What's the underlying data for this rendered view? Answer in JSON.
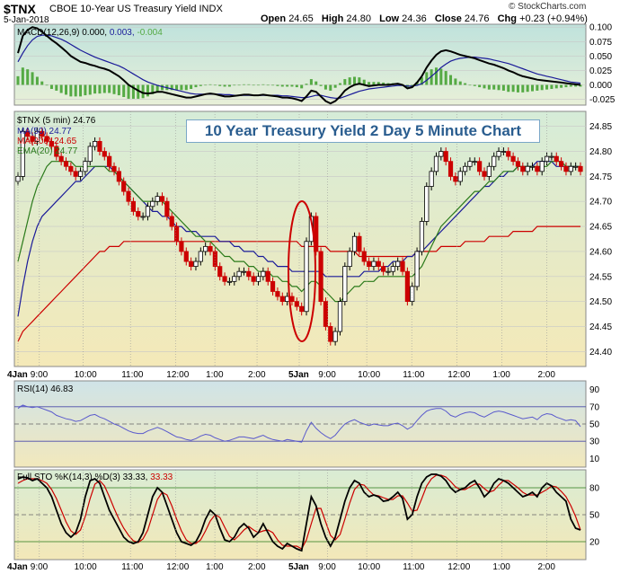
{
  "header": {
    "symbol": "$TNX",
    "name": "CBOE 10-Year US Treasury Yield INDX",
    "date": "5-Jan-2018",
    "open_label": "Open",
    "open": "24.65",
    "high_label": "High",
    "high": "24.80",
    "low_label": "Low",
    "low": "24.36",
    "close_label": "Close",
    "close": "24.76",
    "chg_label": "Chg",
    "chg": "+0.23 (+0.94%)",
    "brand": "© StockCharts.com"
  },
  "chart_title": "10 Year Treasury Yield 2 Day 5 Minute Chart",
  "colors": {
    "up": "#000000",
    "down": "#cc0000",
    "ma50": "#1a1a99",
    "ma200": "#cc0000",
    "ema20": "#2a7a1a",
    "rsi": "#5a5acc",
    "sto_k": "#000000",
    "sto_d": "#cc0000",
    "macd_hist": "#55aa44"
  },
  "x_axis": {
    "ticks": [
      "4Jan",
      "9:00",
      "10:00",
      "11:00",
      "12:00",
      "1:00",
      "2:00",
      "5Jan",
      "9:00",
      "10:00",
      "11:00",
      "12:00",
      "1:00",
      "2:00"
    ]
  },
  "panels": {
    "macd": {
      "label": "MACD(12,26,9)",
      "values_text": "0.000,",
      "signal_text": "0.003,",
      "hist_text": "-0.004",
      "yticks": [
        "0.100",
        "0.075",
        "0.050",
        "0.025",
        "0.000",
        "-0.025"
      ]
    },
    "price": {
      "label": "$TNX (5 min) 24.76",
      "ma50_label": "MA(50) 24.77",
      "ma200_label": "MA(200) 24.65",
      "ema20_label": "EMA(20) 24.77",
      "yticks": [
        "24.85",
        "24.80",
        "24.75",
        "24.70",
        "24.65",
        "24.60",
        "24.55",
        "24.50",
        "24.45",
        "24.40"
      ]
    },
    "rsi": {
      "label": "RSI(14) 46.83",
      "yticks": [
        "90",
        "70",
        "50",
        "30",
        "10"
      ]
    },
    "sto": {
      "label": "Full STO %K(14,3) %D(3) 33.33,",
      "d_text": "33.33",
      "yticks": [
        "80",
        "50",
        "20"
      ]
    }
  },
  "chart_data": [
    {
      "type": "candlestick",
      "title": "10 Year Treasury Yield 2 Day 5 Minute Chart",
      "series_name": "$TNX (5 min)",
      "ylim": [
        24.37,
        24.88
      ],
      "close": [
        24.75,
        24.84,
        24.83,
        24.82,
        24.84,
        24.83,
        24.82,
        24.81,
        24.79,
        24.78,
        24.77,
        24.76,
        24.75,
        24.76,
        24.78,
        24.81,
        24.82,
        24.8,
        24.79,
        24.77,
        24.76,
        24.74,
        24.72,
        24.7,
        24.68,
        24.67,
        24.67,
        24.69,
        24.7,
        24.71,
        24.7,
        24.67,
        24.65,
        24.62,
        24.6,
        24.58,
        24.57,
        24.58,
        24.6,
        24.61,
        24.6,
        24.57,
        24.55,
        24.54,
        24.54,
        24.55,
        24.56,
        24.56,
        24.55,
        24.54,
        24.55,
        24.56,
        24.54,
        24.52,
        24.51,
        24.5,
        24.51,
        24.5,
        24.49,
        24.48,
        24.62,
        24.67,
        24.6,
        24.5,
        24.45,
        24.42,
        24.44,
        24.5,
        24.57,
        24.6,
        24.63,
        24.6,
        24.58,
        24.57,
        24.58,
        24.57,
        24.56,
        24.56,
        24.57,
        24.58,
        24.56,
        24.5,
        24.53,
        24.6,
        24.66,
        24.73,
        24.76,
        24.79,
        24.8,
        24.78,
        24.75,
        24.74,
        24.76,
        24.77,
        24.78,
        24.78,
        24.76,
        24.75,
        24.77,
        24.79,
        24.8,
        24.8,
        24.79,
        24.78,
        24.77,
        24.76,
        24.77,
        24.77,
        24.76,
        24.78,
        24.79,
        24.79,
        24.78,
        24.77,
        24.76,
        24.77,
        24.77,
        24.76
      ],
      "ma50": [
        24.47,
        24.53,
        24.58,
        24.62,
        24.65,
        24.67,
        24.68,
        24.69,
        24.7,
        24.71,
        24.72,
        24.73,
        24.74,
        24.74,
        24.75,
        24.76,
        24.77,
        24.77,
        24.77,
        24.77,
        24.76,
        24.75,
        24.74,
        24.73,
        24.72,
        24.71,
        24.7,
        24.69,
        24.68,
        24.68,
        24.67,
        24.67,
        24.66,
        24.65,
        24.65,
        24.64,
        24.64,
        24.64,
        24.63,
        24.63,
        24.63,
        24.63,
        24.62,
        24.62,
        24.62,
        24.61,
        24.61,
        24.6,
        24.6,
        24.6,
        24.59,
        24.59,
        24.58,
        24.58,
        24.57,
        24.57,
        24.57,
        24.56,
        24.56,
        24.56,
        24.56,
        24.56,
        24.56,
        24.56,
        24.55,
        24.55,
        24.55,
        24.55,
        24.55,
        24.55,
        24.55,
        24.55,
        24.56,
        24.56,
        24.56,
        24.56,
        24.57,
        24.57,
        24.58,
        24.58,
        24.58,
        24.59,
        24.59,
        24.6,
        24.6,
        24.61,
        24.62,
        24.63,
        24.64,
        24.65,
        24.66,
        24.67,
        24.68,
        24.69,
        24.7,
        24.71,
        24.72,
        24.73,
        24.73,
        24.74,
        24.75,
        24.75,
        24.76,
        24.76,
        24.77,
        24.77,
        24.77,
        24.77,
        24.78,
        24.78,
        24.78,
        24.78,
        24.77,
        24.77,
        24.77,
        24.77,
        24.77,
        24.77
      ],
      "ma200": [
        24.42,
        24.44,
        24.45,
        24.46,
        24.47,
        24.48,
        24.49,
        24.5,
        24.51,
        24.52,
        24.53,
        24.54,
        24.55,
        24.56,
        24.57,
        24.58,
        24.59,
        24.6,
        24.6,
        24.61,
        24.61,
        24.61,
        24.62,
        24.62,
        24.62,
        24.62,
        24.62,
        24.62,
        24.62,
        24.62,
        24.62,
        24.62,
        24.62,
        24.62,
        24.62,
        24.62,
        24.62,
        24.62,
        24.62,
        24.62,
        24.62,
        24.62,
        24.62,
        24.62,
        24.62,
        24.62,
        24.62,
        24.62,
        24.62,
        24.62,
        24.62,
        24.62,
        24.62,
        24.62,
        24.62,
        24.62,
        24.62,
        24.62,
        24.62,
        24.61,
        24.61,
        24.61,
        24.61,
        24.61,
        24.61,
        24.6,
        24.6,
        24.6,
        24.6,
        24.6,
        24.6,
        24.59,
        24.59,
        24.59,
        24.59,
        24.59,
        24.59,
        24.59,
        24.59,
        24.59,
        24.59,
        24.59,
        24.59,
        24.6,
        24.6,
        24.6,
        24.6,
        24.6,
        24.61,
        24.61,
        24.61,
        24.61,
        24.61,
        24.62,
        24.62,
        24.62,
        24.62,
        24.62,
        24.63,
        24.63,
        24.63,
        24.63,
        24.63,
        24.64,
        24.64,
        24.64,
        24.64,
        24.64,
        24.65,
        24.65,
        24.65,
        24.65,
        24.65,
        24.65,
        24.65,
        24.65,
        24.65,
        24.65
      ],
      "ema20": [
        24.58,
        24.62,
        24.66,
        24.7,
        24.73,
        24.75,
        24.77,
        24.78,
        24.78,
        24.78,
        24.78,
        24.78,
        24.77,
        24.77,
        24.77,
        24.77,
        24.77,
        24.77,
        24.77,
        24.76,
        24.76,
        24.75,
        24.74,
        24.73,
        24.72,
        24.71,
        24.7,
        24.7,
        24.7,
        24.7,
        24.7,
        24.69,
        24.68,
        24.67,
        24.66,
        24.65,
        24.64,
        24.63,
        24.63,
        24.62,
        24.62,
        24.61,
        24.6,
        24.59,
        24.59,
        24.58,
        24.58,
        24.58,
        24.57,
        24.57,
        24.56,
        24.56,
        24.56,
        24.55,
        24.55,
        24.54,
        24.54,
        24.53,
        24.53,
        24.52,
        24.53,
        24.54,
        24.54,
        24.53,
        24.52,
        24.51,
        24.5,
        24.5,
        24.51,
        24.52,
        24.53,
        24.53,
        24.54,
        24.54,
        24.54,
        24.55,
        24.55,
        24.55,
        24.55,
        24.55,
        24.55,
        24.55,
        24.55,
        24.56,
        24.57,
        24.59,
        24.61,
        24.63,
        24.65,
        24.66,
        24.67,
        24.68,
        24.69,
        24.7,
        24.71,
        24.72,
        24.72,
        24.73,
        24.74,
        24.74,
        24.75,
        24.76,
        24.76,
        24.76,
        24.77,
        24.77,
        24.77,
        24.77,
        24.77,
        24.77,
        24.77,
        24.78,
        24.78,
        24.78,
        24.77,
        24.77,
        24.77,
        24.77
      ]
    },
    {
      "type": "line",
      "series_name": "MACD(12,26,9)",
      "ylim": [
        -0.035,
        0.105
      ],
      "macd": [
        0.055,
        0.085,
        0.095,
        0.1,
        0.098,
        0.092,
        0.085,
        0.078,
        0.072,
        0.065,
        0.058,
        0.05,
        0.045,
        0.04,
        0.038,
        0.035,
        0.033,
        0.03,
        0.028,
        0.025,
        0.02,
        0.015,
        0.008,
        0.0,
        -0.005,
        -0.01,
        -0.014,
        -0.015,
        -0.014,
        -0.012,
        -0.012,
        -0.014,
        -0.016,
        -0.018,
        -0.02,
        -0.022,
        -0.022,
        -0.02,
        -0.018,
        -0.016,
        -0.015,
        -0.016,
        -0.018,
        -0.02,
        -0.02,
        -0.019,
        -0.018,
        -0.017,
        -0.017,
        -0.018,
        -0.018,
        -0.017,
        -0.018,
        -0.019,
        -0.02,
        -0.022,
        -0.022,
        -0.023,
        -0.025,
        -0.028,
        -0.02,
        -0.01,
        -0.012,
        -0.02,
        -0.028,
        -0.032,
        -0.028,
        -0.02,
        -0.01,
        -0.004,
        0.0,
        0.002,
        0.0,
        -0.002,
        -0.001,
        0.0,
        0.0,
        0.0,
        0.001,
        0.002,
        0.0,
        -0.006,
        -0.004,
        0.004,
        0.015,
        0.03,
        0.042,
        0.052,
        0.058,
        0.06,
        0.058,
        0.055,
        0.052,
        0.05,
        0.048,
        0.046,
        0.043,
        0.04,
        0.037,
        0.035,
        0.032,
        0.029,
        0.025,
        0.022,
        0.018,
        0.015,
        0.013,
        0.011,
        0.009,
        0.008,
        0.007,
        0.006,
        0.005,
        0.004,
        0.003,
        0.002,
        0.001,
        0.0
      ],
      "signal": [
        0.04,
        0.055,
        0.068,
        0.078,
        0.084,
        0.086,
        0.086,
        0.085,
        0.082,
        0.079,
        0.075,
        0.07,
        0.065,
        0.06,
        0.056,
        0.052,
        0.048,
        0.045,
        0.042,
        0.039,
        0.036,
        0.033,
        0.029,
        0.024,
        0.019,
        0.014,
        0.009,
        0.005,
        0.002,
        -0.001,
        -0.003,
        -0.005,
        -0.007,
        -0.009,
        -0.011,
        -0.013,
        -0.015,
        -0.016,
        -0.016,
        -0.016,
        -0.016,
        -0.016,
        -0.016,
        -0.017,
        -0.017,
        -0.018,
        -0.018,
        -0.018,
        -0.018,
        -0.018,
        -0.018,
        -0.018,
        -0.018,
        -0.018,
        -0.018,
        -0.019,
        -0.019,
        -0.02,
        -0.021,
        -0.022,
        -0.022,
        -0.02,
        -0.018,
        -0.018,
        -0.02,
        -0.022,
        -0.023,
        -0.023,
        -0.02,
        -0.017,
        -0.014,
        -0.011,
        -0.009,
        -0.007,
        -0.006,
        -0.005,
        -0.004,
        -0.003,
        -0.002,
        -0.001,
        -0.001,
        -0.002,
        -0.002,
        -0.001,
        0.002,
        0.008,
        0.015,
        0.022,
        0.03,
        0.036,
        0.041,
        0.044,
        0.046,
        0.047,
        0.048,
        0.048,
        0.047,
        0.046,
        0.045,
        0.043,
        0.041,
        0.039,
        0.037,
        0.034,
        0.031,
        0.028,
        0.025,
        0.022,
        0.019,
        0.017,
        0.015,
        0.013,
        0.011,
        0.009,
        0.007,
        0.005,
        0.004,
        0.003
      ]
    },
    {
      "type": "line",
      "series_name": "RSI(14)",
      "ylim": [
        0,
        100
      ],
      "values": [
        68,
        72,
        70,
        69,
        70,
        68,
        66,
        64,
        60,
        58,
        56,
        55,
        53,
        54,
        57,
        60,
        61,
        58,
        56,
        53,
        50,
        48,
        45,
        42,
        40,
        39,
        39,
        42,
        44,
        46,
        44,
        41,
        38,
        35,
        34,
        32,
        31,
        33,
        36,
        38,
        37,
        34,
        32,
        30,
        31,
        33,
        35,
        35,
        34,
        33,
        35,
        37,
        34,
        32,
        31,
        30,
        32,
        31,
        30,
        29,
        42,
        52,
        45,
        40,
        36,
        33,
        37,
        44,
        50,
        53,
        55,
        52,
        50,
        48,
        50,
        49,
        48,
        48,
        50,
        51,
        48,
        44,
        47,
        54,
        60,
        65,
        67,
        68,
        68,
        65,
        60,
        58,
        61,
        63,
        64,
        63,
        60,
        58,
        61,
        64,
        65,
        64,
        62,
        60,
        58,
        56,
        57,
        58,
        55,
        60,
        62,
        61,
        58,
        56,
        54,
        55,
        54,
        47
      ],
      "levels": [
        70,
        50,
        30
      ]
    },
    {
      "type": "line",
      "series_name": "Full STO %K(14,3) %D(3)",
      "ylim": [
        0,
        100
      ],
      "k": [
        90,
        92,
        91,
        88,
        90,
        85,
        80,
        70,
        55,
        40,
        30,
        25,
        30,
        45,
        70,
        88,
        90,
        85,
        70,
        55,
        45,
        35,
        25,
        20,
        18,
        20,
        30,
        50,
        70,
        80,
        75,
        60,
        45,
        30,
        20,
        18,
        16,
        20,
        30,
        45,
        55,
        50,
        35,
        22,
        20,
        25,
        35,
        40,
        35,
        25,
        30,
        40,
        30,
        20,
        15,
        12,
        18,
        15,
        12,
        10,
        40,
        70,
        60,
        40,
        25,
        15,
        25,
        45,
        65,
        80,
        88,
        85,
        75,
        70,
        72,
        70,
        65,
        66,
        70,
        75,
        68,
        45,
        50,
        70,
        85,
        92,
        95,
        95,
        93,
        88,
        80,
        75,
        78,
        80,
        85,
        88,
        80,
        70,
        75,
        85,
        90,
        88,
        85,
        80,
        75,
        70,
        72,
        75,
        70,
        80,
        85,
        82,
        75,
        70,
        65,
        45,
        35,
        33
      ],
      "d": [
        85,
        88,
        90,
        90,
        90,
        88,
        85,
        78,
        68,
        55,
        42,
        32,
        28,
        33,
        48,
        68,
        84,
        88,
        82,
        70,
        57,
        45,
        35,
        27,
        21,
        19,
        23,
        33,
        50,
        67,
        75,
        72,
        60,
        45,
        32,
        22,
        18,
        18,
        22,
        32,
        43,
        50,
        47,
        36,
        26,
        22,
        27,
        33,
        37,
        33,
        30,
        32,
        33,
        30,
        22,
        16,
        15,
        15,
        15,
        12,
        22,
        40,
        57,
        57,
        42,
        27,
        22,
        28,
        45,
        63,
        78,
        84,
        83,
        77,
        72,
        71,
        69,
        67,
        67,
        71,
        71,
        63,
        54,
        55,
        68,
        82,
        90,
        94,
        94,
        92,
        87,
        81,
        78,
        78,
        81,
        84,
        84,
        79,
        75,
        77,
        83,
        88,
        88,
        84,
        80,
        75,
        72,
        72,
        72,
        75,
        78,
        82,
        81,
        76,
        70,
        60,
        48,
        33
      ]
    }
  ]
}
